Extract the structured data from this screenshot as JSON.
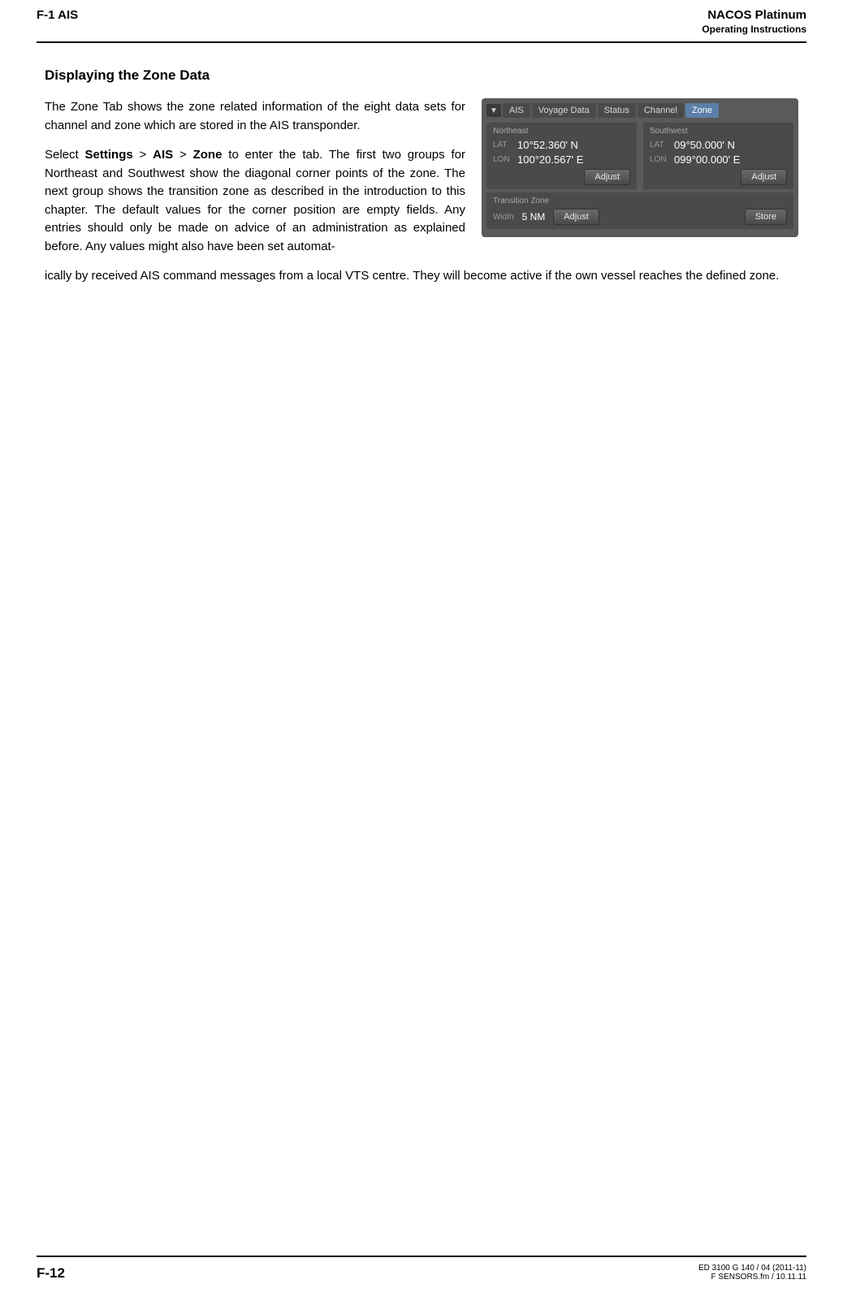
{
  "header": {
    "left": "F-1  AIS",
    "right_title": "NACOS Platinum",
    "right_sub": "Operating Instructions"
  },
  "section_title": "Displaying the Zone Data",
  "para1": "The Zone Tab shows the zone related information of the eight data sets for channel and zone which are stored in the AIS transponder.",
  "para2_pre": "Select ",
  "para2_b1": "Settings",
  "para2_sep": " > ",
  "para2_b2": "AIS",
  "para2_b3": "Zone",
  "para2_post": " to enter the tab. The first two groups for Northeast and Southwest show the diagonal corner points of the zone. The next group shows the transition zone as described in the introduction to this chapter. The default values for the corner position are empty fields. Any entries should only be made on advice of an administration as explained before. Any values might also have been set automat-",
  "para3": "ically by received AIS command messages from a local VTS centre. They will become active if the own vessel reaches the defined zone.",
  "screenshot": {
    "tabs": {
      "menu": "▼",
      "t1": "AIS",
      "t2": "Voyage Data",
      "t3": "Status",
      "t4": "Channel",
      "t5": "Zone"
    },
    "northeast": {
      "label": "Northeast",
      "lat_label": "LAT",
      "lat_value": "10°52.360' N",
      "lon_label": "LON",
      "lon_value": "100°20.567' E",
      "adjust": "Adjust"
    },
    "southwest": {
      "label": "Southwest",
      "lat_label": "LAT",
      "lat_value": "09°50.000' N",
      "lon_label": "LON",
      "lon_value": "099°00.000' E",
      "adjust": "Adjust"
    },
    "transition": {
      "label": "Transition Zone",
      "width_label": "Width",
      "width_value": "5 NM",
      "adjust": "Adjust",
      "store": "Store"
    }
  },
  "footer": {
    "left": "F-12",
    "right1": "ED 3100 G 140 / 04 (2011-11)",
    "right2": "F SENSORS.fm / 10.11.11"
  },
  "colors": {
    "panel_bg": "#5a5a5a",
    "section_bg": "#4a4a4a",
    "tab_active_bg": "#5b7fa8",
    "text_light": "#d8d8d8"
  }
}
